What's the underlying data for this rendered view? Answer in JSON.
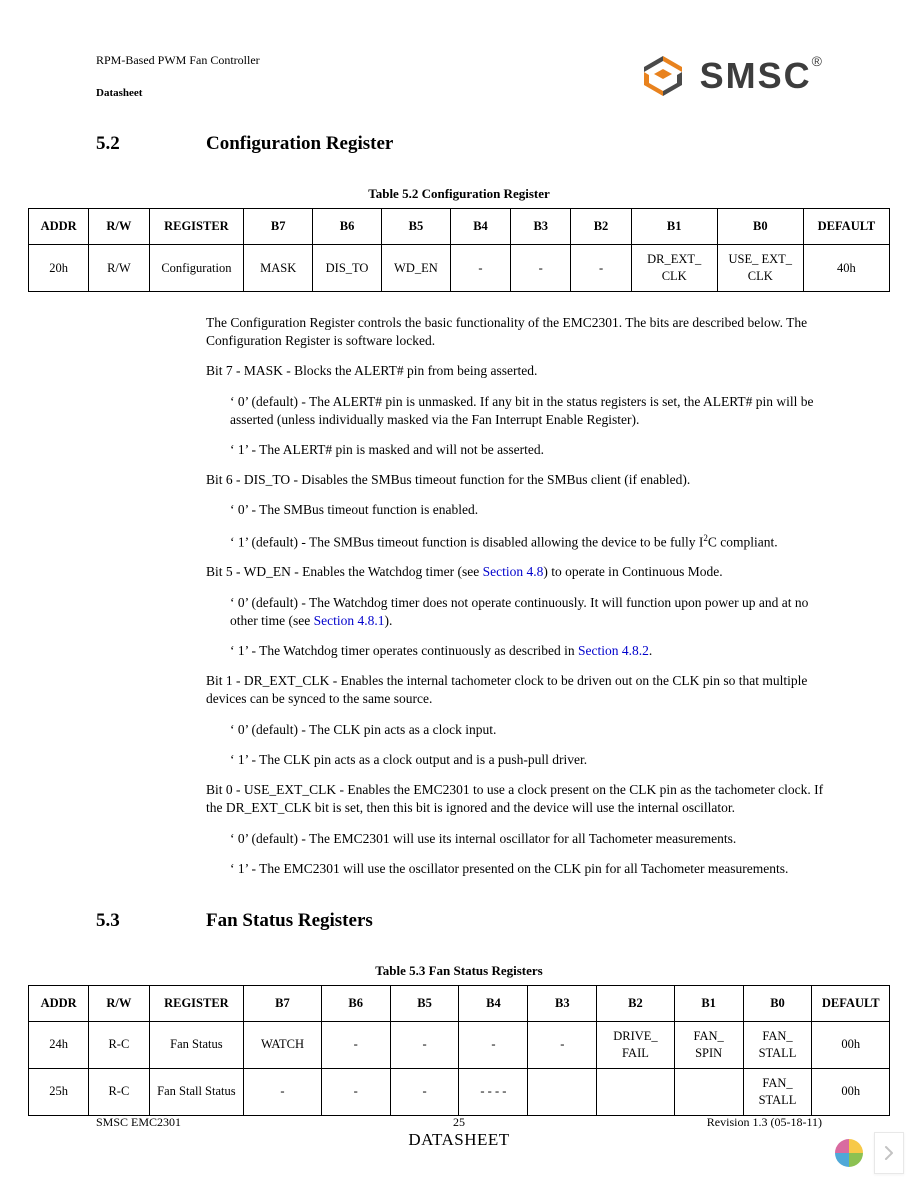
{
  "header": {
    "title": "RPM-Based PWM Fan Controller",
    "doc": "Datasheet",
    "logo_text": "SMSC"
  },
  "section_52": {
    "num": "5.2",
    "title": "Configuration Register",
    "table_caption": "Table 5.2   Configuration Register",
    "columns": [
      "ADDR",
      "R/W",
      "REGISTER",
      "B7",
      "B6",
      "B5",
      "B4",
      "B3",
      "B2",
      "B1",
      "B0",
      "DEFAULT"
    ],
    "row": [
      "20h",
      "R/W",
      "Configuration",
      "MASK",
      "DIS_TO",
      "WD_EN",
      "-",
      "-",
      "-",
      "DR_EXT_ CLK",
      "USE_ EXT_ CLK",
      "40h"
    ],
    "col_widths_pct": [
      7,
      7,
      11,
      8,
      8,
      8,
      7,
      7,
      7,
      10,
      10,
      10
    ],
    "body": {
      "p0": "The Configuration Register controls the basic functionality of the EMC2301. The bits are described below. The Configuration Register is software locked.",
      "p1": "Bit 7 - MASK - Blocks the ALERT# pin from being asserted.",
      "p1a": "‘ 0’ (default) - The ALERT# pin is unmasked. If any bit in the status registers is set, the ALERT# pin will be asserted (unless individually masked via the Fan Interrupt Enable Register).",
      "p1b": "‘ 1’ - The ALERT# pin is masked and will not be asserted.",
      "p2": "Bit 6 - DIS_TO - Disables the SMBus timeout function for the SMBus client (if enabled).",
      "p2a": "‘ 0’ - The SMBus timeout function is enabled.",
      "p2b_pre": "‘ 1’ (default) - The SMBus timeout function is disabled allowing the device to be fully I",
      "p2b_post": "C compliant.",
      "p3_pre": "Bit 5 - WD_EN - Enables the Watchdog timer (see ",
      "p3_link": "Section 4.8",
      "p3_post": ") to operate in Continuous Mode.",
      "p3a_pre": "‘ 0’ (default) - The Watchdog timer does not operate continuously. It will function upon power up and at no other time (see ",
      "p3a_link": "Section 4.8.1",
      "p3a_post": ").",
      "p3b_pre": "‘ 1’ - The Watchdog timer operates continuously as described in ",
      "p3b_link": "Section 4.8.2",
      "p3b_post": ".",
      "p4": "Bit 1 - DR_EXT_CLK - Enables the internal tachometer clock to be driven out on the CLK pin so that multiple devices can be synced to the same source.",
      "p4a": "‘ 0’ (default) - The CLK pin acts as a clock input.",
      "p4b": "‘ 1’ - The CLK pin acts as a clock output and is a push-pull driver.",
      "p5": "Bit 0 - USE_EXT_CLK - Enables the EMC2301 to use a clock present on the CLK pin as the tachometer clock. If the DR_EXT_CLK bit is set, then this bit is ignored and the device will use the internal oscillator.",
      "p5a": "‘ 0’ (default) - The EMC2301 will use its internal oscillator for all Tachometer measurements.",
      "p5b": "‘ 1’ - The EMC2301 will use the oscillator presented on the CLK pin for all Tachometer measurements."
    }
  },
  "section_53": {
    "num": "5.3",
    "title": "Fan Status Registers",
    "table_caption": "Table 5.3   Fan Status Registers",
    "columns": [
      "ADDR",
      "R/W",
      "REGISTER",
      "B7",
      "B6",
      "B5",
      "B4",
      "B3",
      "B2",
      "B1",
      "B0",
      "DEFAULT"
    ],
    "col_widths_pct": [
      7,
      7,
      11,
      9,
      8,
      8,
      8,
      8,
      9,
      8,
      8,
      9
    ],
    "rows": [
      [
        "24h",
        "R-C",
        "Fan Status",
        "WATCH",
        "-",
        "-",
        "-",
        "-",
        "DRIVE_ FAIL",
        "FAN_ SPIN",
        "FAN_ STALL",
        "00h"
      ],
      [
        "25h",
        "R-C",
        "Fan Stall Status",
        "-",
        "-",
        "-",
        "- - - -",
        "",
        "",
        "",
        "FAN_ STALL",
        "00h"
      ]
    ]
  },
  "footer": {
    "left": "SMSC EMC2301",
    "page": "25",
    "right": "Revision 1.3 (05-18-11)",
    "ds": "DATASHEET"
  },
  "style": {
    "link_color": "#0000cc",
    "text_color": "#000000",
    "border_color": "#000000",
    "logo_orange": "#e8821e",
    "logo_gray": "#3d3d3d"
  }
}
